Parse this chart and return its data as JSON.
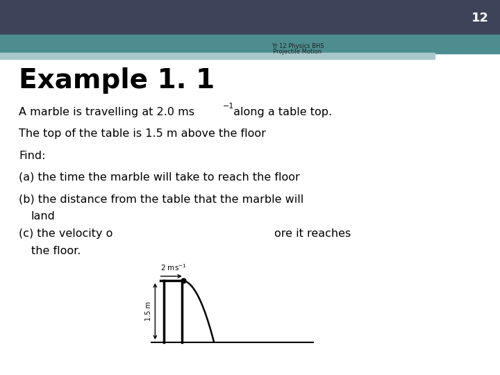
{
  "slide_num": "12",
  "header_color_top": "#3d4459",
  "header_color_mid": "#4d8d8f",
  "header_color_light": "#a8c8cc",
  "subtitle_line1": "Yr 12 Physics BHS",
  "subtitle_line2": "Projectile Motion",
  "example_title": "Example 1. 1",
  "bg_color": "#ffffff",
  "text_color": "#000000"
}
